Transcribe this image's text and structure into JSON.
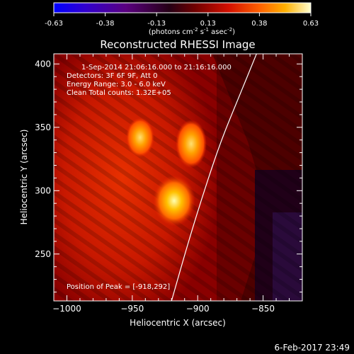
{
  "colorbar": {
    "ticks": [
      "-0.63",
      "-0.38",
      "-0.13",
      "0.13",
      "0.38",
      "0.63"
    ],
    "units_main": "(photons cm",
    "units_exp1": "-2",
    "units_mid": " s",
    "units_exp2": "-1",
    "units_mid2": " asec",
    "units_exp3": "-2",
    "units_close": ")",
    "colors": [
      "#0000ff",
      "#3a00c0",
      "#5a0080",
      "#2a0030",
      "#600000",
      "#c00000",
      "#ff3000",
      "#ff9000",
      "#ffd000",
      "#ffffc0"
    ]
  },
  "plot": {
    "title": "Reconstructed RHESSI Image",
    "info_line1": "1-Sep-2014 21:06:16.000 to 21:16:16.000",
    "info_line2": "Detectors: 3F 6F 9F, Att 0",
    "info_line3": "Energy Range: 3.0 - 6.0 keV",
    "info_line4": "Clean     Total counts: 1.32E+05",
    "peak_label": "Position of Peak = [-918,292]",
    "footer_date": "6-Feb-2017 23:49"
  },
  "chart_data": {
    "type": "heatmap",
    "title": "Reconstructed RHESSI Image",
    "xlabel": "Heliocentric X (arcsec)",
    "ylabel": "Heliocentric Y (arcsec)",
    "xlim": [
      -1010,
      -820
    ],
    "ylim": [
      213,
      408
    ],
    "xticks": [
      -1000,
      -950,
      -900,
      -850
    ],
    "yticks": [
      250,
      300,
      350,
      400
    ],
    "xtick_labels": [
      "−1000",
      "−950",
      "−900",
      "−850"
    ],
    "ytick_labels": [
      "250",
      "300",
      "350",
      "400"
    ],
    "colorbar_range": [
      -0.63,
      0.63
    ],
    "sources": [
      {
        "x": -918,
        "y": 292,
        "value": 0.63
      },
      {
        "x": -905,
        "y": 337,
        "value": 0.5
      },
      {
        "x": -944,
        "y": 342,
        "value": 0.45
      }
    ],
    "limb_curve": [
      [
        -920,
        213
      ],
      [
        -907,
        260
      ],
      [
        -895,
        300
      ],
      [
        -882,
        340
      ],
      [
        -868,
        375
      ],
      [
        -855,
        408
      ]
    ],
    "peak_position": [
      -918,
      292
    ]
  }
}
